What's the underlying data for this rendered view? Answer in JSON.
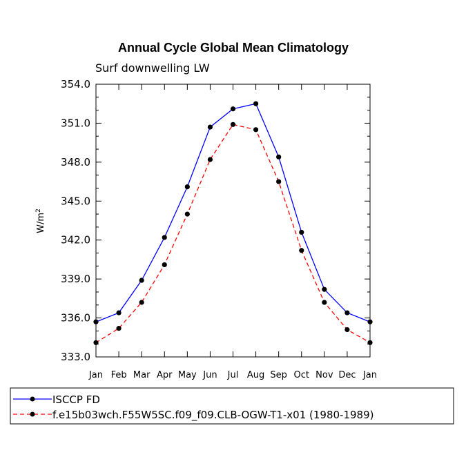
{
  "chart_data": {
    "type": "line",
    "title": "Annual Cycle Global Mean Climatology",
    "subtitle": "Surf downwelling LW",
    "ylabel_base": "W/m",
    "ylabel_exp": "2",
    "xlabel": "",
    "categories": [
      "Jan",
      "Feb",
      "Mar",
      "Apr",
      "May",
      "Jun",
      "Jul",
      "Aug",
      "Sep",
      "Oct",
      "Nov",
      "Dec",
      "Jan"
    ],
    "ylim": [
      333.0,
      354.0
    ],
    "yticks": [
      "333.0",
      "336.0",
      "339.0",
      "342.0",
      "345.0",
      "348.0",
      "351.0",
      "354.0"
    ],
    "series": [
      {
        "name": "ISCCP FD",
        "color": "#0000ff",
        "dash": "solid",
        "values": [
          335.7,
          336.4,
          338.9,
          342.2,
          346.1,
          350.7,
          352.1,
          352.5,
          348.4,
          342.6,
          338.2,
          336.4,
          335.7
        ]
      },
      {
        "name": "f.e15b03wch.F55W5SC.f09_f09.CLB-OGW-T1-x01 (1980-1989)",
        "color": "#ff0000",
        "dash": "dashed",
        "values": [
          334.1,
          335.2,
          337.2,
          340.1,
          344.0,
          348.2,
          350.9,
          350.5,
          346.5,
          341.2,
          337.2,
          335.1,
          334.1
        ]
      }
    ]
  }
}
